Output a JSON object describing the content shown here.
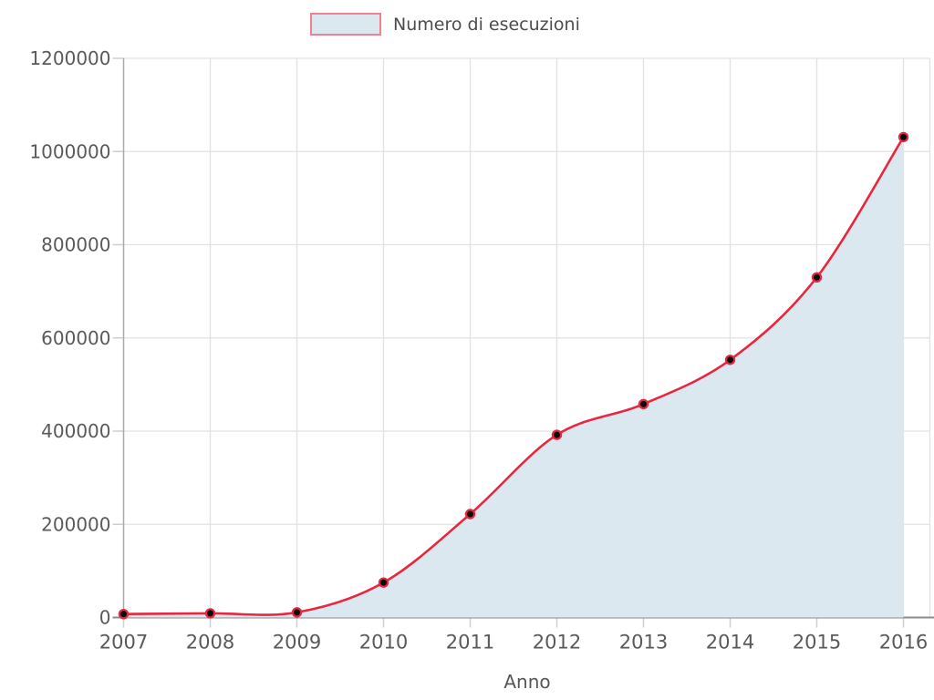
{
  "chart_data": {
    "type": "area",
    "title": "",
    "xlabel": "Anno",
    "ylabel": "",
    "legend": {
      "label": "Numero di esecuzioni",
      "position": "top-center"
    },
    "categories": [
      "2007",
      "2008",
      "2009",
      "2010",
      "2011",
      "2012",
      "2013",
      "2014",
      "2015",
      "2016"
    ],
    "series": [
      {
        "name": "Numero di esecuzioni",
        "values": [
          7500,
          9000,
          11000,
          75000,
          222000,
          392000,
          458000,
          553000,
          730000,
          1031000
        ]
      }
    ],
    "ylim": [
      0,
      1200000
    ],
    "y_ticks": [
      0,
      200000,
      400000,
      600000,
      800000,
      1000000,
      1200000
    ],
    "y_tick_labels": [
      "0",
      "200000",
      "400000",
      "600000",
      "800000",
      "1000000",
      "1200000"
    ],
    "grid": true,
    "marker_shape": "circle",
    "colors": {
      "line": "#e8263e",
      "fill": "#dce8f0",
      "marker": "#0a0a0a",
      "legend_border": "#f4808f",
      "grid": "#e2e2e2",
      "axis_y": "#aaaaaa",
      "axis_x": "#8c8c8c",
      "tick": "#cfcfcf",
      "text": "#5a5a5a"
    }
  }
}
